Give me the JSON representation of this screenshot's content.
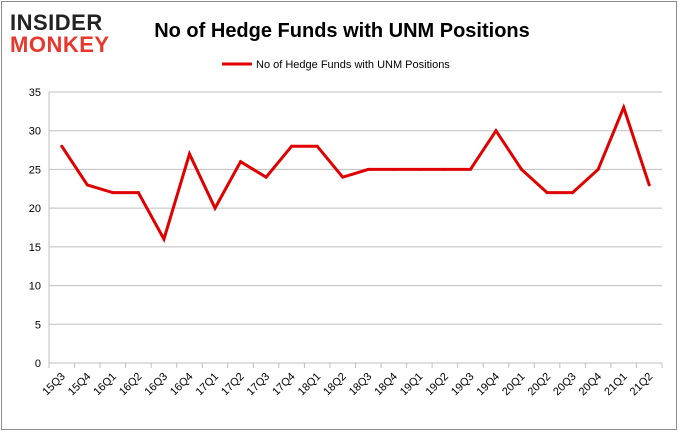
{
  "logo": {
    "line1": "INSIDER",
    "line2": "MONKEY"
  },
  "chart_data": {
    "type": "line",
    "title": "No of Hedge Funds with UNM Positions",
    "xlabel": "",
    "ylabel": "",
    "ylim": [
      0,
      35
    ],
    "yticks": [
      0,
      5,
      10,
      15,
      20,
      25,
      30,
      35
    ],
    "grid": true,
    "legend_position": "top-center",
    "categories": [
      "15Q3",
      "15Q4",
      "16Q1",
      "16Q2",
      "16Q3",
      "16Q4",
      "17Q1",
      "17Q2",
      "17Q3",
      "17Q4",
      "18Q1",
      "18Q2",
      "18Q3",
      "18Q4",
      "19Q1",
      "19Q2",
      "19Q3",
      "19Q4",
      "20Q1",
      "20Q2",
      "20Q3",
      "20Q4",
      "21Q1",
      "21Q2"
    ],
    "series": [
      {
        "name": "No of Hedge Funds with UNM  Positions",
        "color": "#e00000",
        "values": [
          28,
          23,
          22,
          22,
          16,
          27,
          20,
          26,
          24,
          28,
          28,
          24,
          25,
          25,
          25,
          25,
          25,
          30,
          25,
          22,
          22,
          25,
          33,
          23
        ]
      }
    ]
  }
}
